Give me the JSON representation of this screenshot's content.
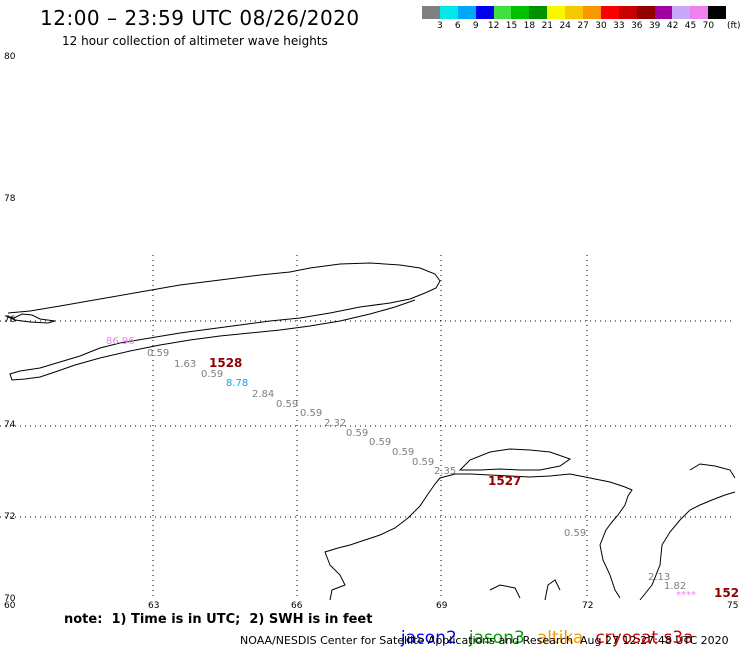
{
  "header": {
    "title": "12:00 – 23:59 UTC 08/26/2020",
    "subtitle": "12 hour collection of altimeter wave heights"
  },
  "color_scale": {
    "unit": "(ft)",
    "bins": [
      {
        "label": "3",
        "color": "#808080"
      },
      {
        "label": "6",
        "color": "#00e8e8"
      },
      {
        "label": "9",
        "color": "#00a8f8"
      },
      {
        "label": "12",
        "color": "#0000f0"
      },
      {
        "label": "15",
        "color": "#40e040"
      },
      {
        "label": "18",
        "color": "#00c000"
      },
      {
        "label": "21",
        "color": "#009000"
      },
      {
        "label": "24",
        "color": "#f8f800"
      },
      {
        "label": "27",
        "color": "#f8c800"
      },
      {
        "label": "30",
        "color": "#f89800"
      },
      {
        "label": "33",
        "color": "#f80000"
      },
      {
        "label": "36",
        "color": "#c80000"
      },
      {
        "label": "39",
        "color": "#900000"
      },
      {
        "label": "42",
        "color": "#a000a0"
      },
      {
        "label": "45",
        "color": "#c8a8f8"
      },
      {
        "label": "70",
        "color": "#f080f0"
      },
      {
        "label": "",
        "color": "#000000"
      }
    ]
  },
  "axes": {
    "lat_labels": [
      "80",
      "78",
      "76",
      "74",
      "72",
      "70"
    ],
    "lon_labels": [
      "60",
      "63",
      "66",
      "69",
      "72",
      "75"
    ]
  },
  "observations": [
    {
      "text": "86.96",
      "color": "#f080f0",
      "kind": "small"
    },
    {
      "text": "0.59",
      "color": "#808080",
      "kind": "small"
    },
    {
      "text": "1.63",
      "color": "#808080",
      "kind": "small"
    },
    {
      "text": "1528",
      "color": "#900000",
      "kind": "big"
    },
    {
      "text": "0.59",
      "color": "#808080",
      "kind": "small"
    },
    {
      "text": "8.78",
      "color": "#00a8f8",
      "kind": "small"
    },
    {
      "text": "2.84",
      "color": "#808080",
      "kind": "small"
    },
    {
      "text": "0.59",
      "color": "#808080",
      "kind": "small"
    },
    {
      "text": "0.59",
      "color": "#808080",
      "kind": "small"
    },
    {
      "text": "2.32",
      "color": "#808080",
      "kind": "small"
    },
    {
      "text": "0.59",
      "color": "#808080",
      "kind": "small"
    },
    {
      "text": "0.59",
      "color": "#808080",
      "kind": "small"
    },
    {
      "text": "0.59",
      "color": "#808080",
      "kind": "small"
    },
    {
      "text": "0.59",
      "color": "#808080",
      "kind": "small"
    },
    {
      "text": "2.35",
      "color": "#808080",
      "kind": "small"
    },
    {
      "text": "1527",
      "color": "#900000",
      "kind": "big"
    },
    {
      "text": "0.59",
      "color": "#808080",
      "kind": "small"
    },
    {
      "text": "2.13",
      "color": "#808080",
      "kind": "small"
    },
    {
      "text": "1.82",
      "color": "#808080",
      "kind": "small"
    },
    {
      "text": "****",
      "color": "#f080f0",
      "kind": "small"
    },
    {
      "text": "152",
      "color": "#900000",
      "kind": "big"
    }
  ],
  "note": "note:  1) Time is in UTC;  2) SWH is in feet",
  "satellites": [
    {
      "name": "jason2",
      "color": "#0000f0"
    },
    {
      "name": "jason3",
      "color": "#00a000"
    },
    {
      "name": "altika",
      "color": "#f89800"
    },
    {
      "name": "cryosat s3a",
      "color": "#d00000"
    }
  ],
  "footer": {
    "credit": "NOAA/NESDIS Center for Satellite Applications and Research",
    "timestamp": "Aug 27 12:27:48 UTC 2020"
  }
}
